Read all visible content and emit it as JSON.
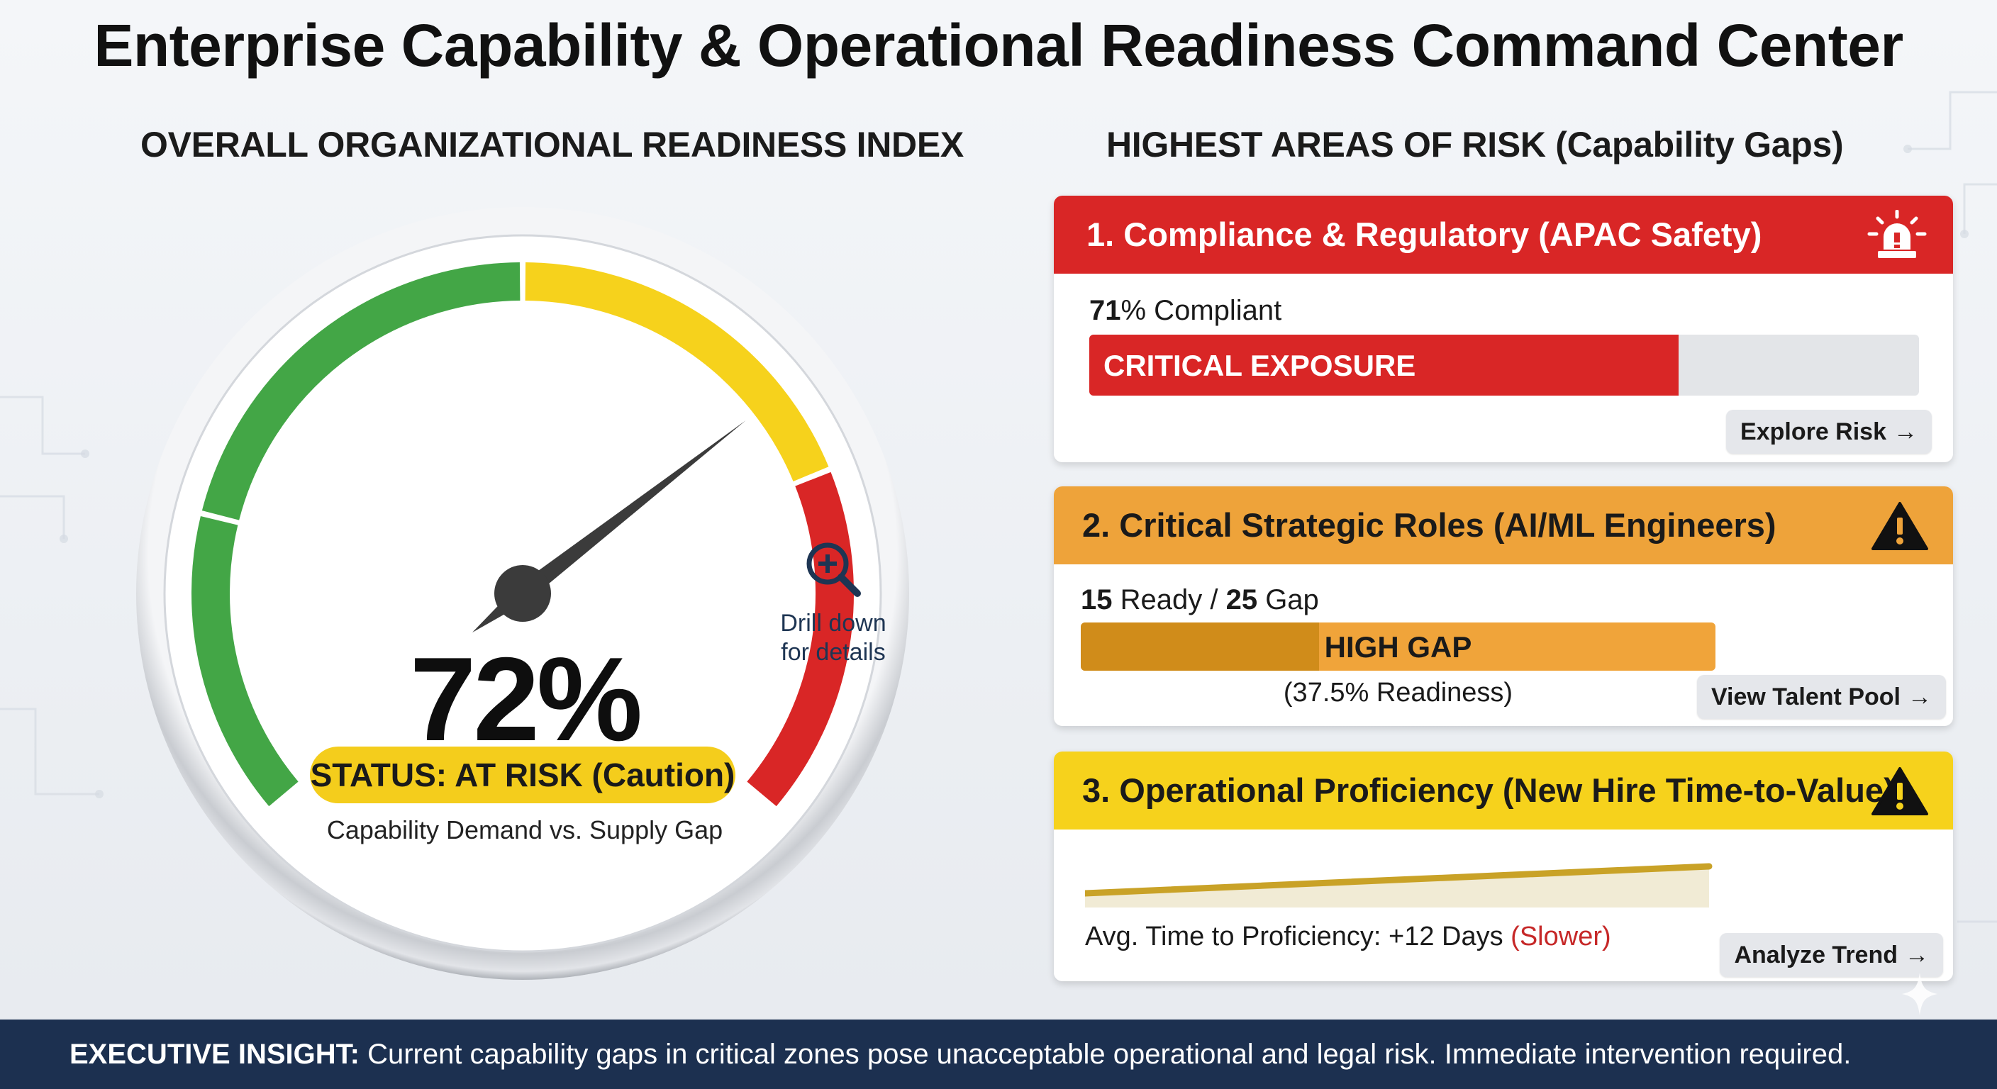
{
  "title": "Enterprise Capability & Operational Readiness Command Center",
  "gauge": {
    "title": "OVERALL ORGANIZATIONAL READINESS INDEX",
    "value_pct": 72,
    "value_text": "72%",
    "status": "STATUS: AT RISK (Caution)",
    "subtitle": "Capability Demand vs. Supply Gap",
    "drill_line1": "Drill down",
    "drill_line2": "for details",
    "colors": {
      "green": "#43a646",
      "yellow": "#f6d21c",
      "red": "#d92626"
    }
  },
  "risks": {
    "title": "HIGHEST AREAS OF RISK (Capability Gaps)",
    "items": [
      {
        "heading": "1. Compliance & Regulatory (APAC Safety)",
        "metric_value": "71",
        "metric_suffix": "% Compliant",
        "bar_label": "CRITICAL EXPOSURE",
        "bar_fill_fraction": 0.71,
        "button": "Explore Risk",
        "icon": "alarm-light-icon",
        "color": "#d92626"
      },
      {
        "heading": "2. Critical Strategic Roles (AI/ML Engineers)",
        "ready_value": "15",
        "ready_text": " Ready / ",
        "gap_value": "25",
        "gap_text": " Gap",
        "bar_label": "HIGH GAP",
        "bar_fill_fraction": 0.375,
        "readiness_note": "(37.5% Readiness)",
        "button": "View Talent Pool",
        "icon": "warning-triangle-icon",
        "color": "#eea33a"
      },
      {
        "heading": "3. Operational Proficiency (New Hire Time-to-Value)",
        "metric_text": "Avg. Time to Proficiency: +12 Days ",
        "metric_note": "(Slower)",
        "button": "Analyze Trend",
        "icon": "warning-triangle-icon",
        "color": "#f6d21c"
      }
    ]
  },
  "footer": {
    "label": "EXECUTIVE INSIGHT:",
    "text": " Current capability gaps in critical zones pose unacceptable operational and legal risk. Immediate intervention required."
  },
  "arrow": "→"
}
